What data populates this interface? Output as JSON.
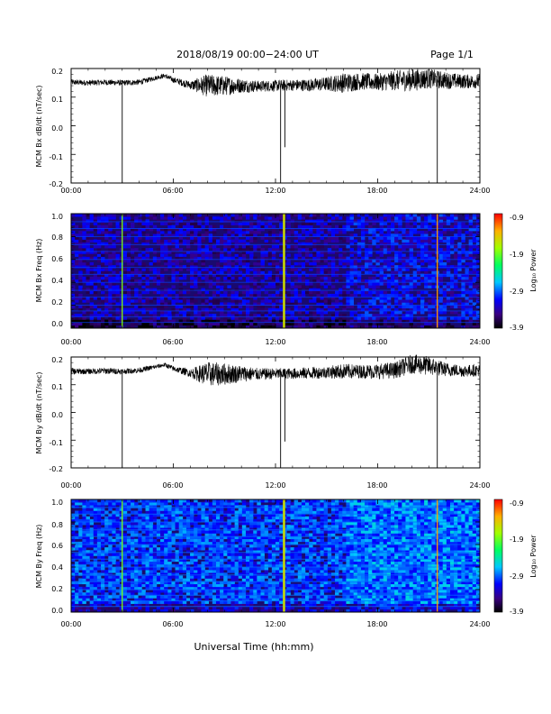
{
  "header": {
    "title": "2018/08/19  00:00−24:00 UT",
    "page": "Page 1/1"
  },
  "footer": {
    "xlabel": "Universal Time (hh:mm)"
  },
  "colors": {
    "trace": "#000000",
    "spectrogram_background": "#1a0a6e"
  },
  "chart_data": [
    {
      "type": "line",
      "panel": "bx-trace",
      "ylabel": "MCM Bx dB/dt (nT/sec)",
      "xlim": [
        0,
        24
      ],
      "ylim": [
        -0.2,
        0.2
      ],
      "x_ticks": [
        "00:00",
        "06:00",
        "12:00",
        "18:00",
        "24:00"
      ],
      "y_ticks": [
        "0.2",
        "0.1",
        "0.0",
        "-0.1",
        "-0.2"
      ],
      "series": [
        {
          "x": [
            0,
            1,
            2,
            3,
            4,
            5,
            5.5,
            6,
            7,
            8,
            9,
            10,
            11,
            12,
            13,
            14,
            15,
            16,
            17,
            18,
            19,
            20,
            21,
            22,
            23,
            24
          ],
          "y": [
            0.152,
            0.15,
            0.152,
            0.15,
            0.152,
            0.168,
            0.175,
            0.16,
            0.142,
            0.14,
            0.14,
            0.14,
            0.138,
            0.14,
            0.142,
            0.142,
            0.146,
            0.15,
            0.155,
            0.152,
            0.158,
            0.16,
            0.165,
            0.158,
            0.155,
            0.155
          ],
          "noise_amplitude": [
            0.01,
            0.01,
            0.01,
            0.01,
            0.01,
            0.008,
            0.008,
            0.01,
            0.015,
            0.04,
            0.035,
            0.025,
            0.02,
            0.02,
            0.02,
            0.022,
            0.025,
            0.035,
            0.03,
            0.03,
            0.035,
            0.04,
            0.035,
            0.03,
            0.025,
            0.025
          ],
          "spikes": [
            {
              "x": 3.0,
              "y": -0.2
            },
            {
              "x": 12.3,
              "y": -0.2
            },
            {
              "x": 12.55,
              "y": -0.075
            },
            {
              "x": 21.5,
              "y": -0.2
            }
          ]
        }
      ]
    },
    {
      "type": "heatmap",
      "panel": "bx-spectrogram",
      "ylabel": "MCM Bx Freq (Hz)",
      "xlim": [
        0,
        24
      ],
      "ylim": [
        0,
        1.0
      ],
      "x_ticks": [
        "00:00",
        "06:00",
        "12:00",
        "18:00",
        "24:00"
      ],
      "y_ticks": [
        "1.0",
        "0.8",
        "0.6",
        "0.4",
        "0.2",
        "0.0"
      ],
      "colorbar": {
        "label": "Log₁₀ Power",
        "range": [
          -3.9,
          -0.9
        ],
        "ticks": [
          "-0.9",
          "-1.9",
          "-2.9",
          "-3.9"
        ]
      },
      "harmonic_lines_hz": [
        0.05,
        0.1,
        0.15,
        0.2,
        0.27,
        0.33,
        0.4,
        0.47,
        0.53,
        0.6,
        0.67,
        0.73,
        0.8,
        0.87,
        0.93
      ],
      "vertical_events": [
        {
          "t": 3.0,
          "level": -1.9
        },
        {
          "t": 12.5,
          "level": -1.6
        },
        {
          "t": 21.5,
          "level": -1.3
        }
      ]
    },
    {
      "type": "line",
      "panel": "by-trace",
      "ylabel": "MCM By dB/dt (nT/sec)",
      "xlim": [
        0,
        24
      ],
      "ylim": [
        -0.2,
        0.2
      ],
      "x_ticks": [
        "00:00",
        "06:00",
        "12:00",
        "18:00",
        "24:00"
      ],
      "y_ticks": [
        "0.2",
        "0.1",
        "0.0",
        "-0.1",
        "-0.2"
      ],
      "series": [
        {
          "x": [
            0,
            1,
            2,
            3,
            4,
            5,
            5.5,
            6,
            7,
            8,
            9,
            10,
            11,
            12,
            13,
            14,
            15,
            16,
            17,
            18,
            19,
            20,
            21,
            22,
            23,
            24
          ],
          "y": [
            0.148,
            0.148,
            0.15,
            0.148,
            0.152,
            0.165,
            0.172,
            0.158,
            0.142,
            0.138,
            0.138,
            0.14,
            0.138,
            0.14,
            0.14,
            0.142,
            0.145,
            0.148,
            0.148,
            0.148,
            0.152,
            0.175,
            0.168,
            0.155,
            0.15,
            0.152
          ],
          "noise_amplitude": [
            0.012,
            0.01,
            0.012,
            0.01,
            0.01,
            0.008,
            0.008,
            0.01,
            0.015,
            0.045,
            0.04,
            0.03,
            0.022,
            0.02,
            0.02,
            0.022,
            0.022,
            0.028,
            0.025,
            0.028,
            0.03,
            0.035,
            0.035,
            0.025,
            0.022,
            0.022
          ],
          "spikes": [
            {
              "x": 3.0,
              "y": -0.2
            },
            {
              "x": 12.3,
              "y": -0.2
            },
            {
              "x": 12.55,
              "y": -0.105
            },
            {
              "x": 21.5,
              "y": -0.2
            }
          ]
        }
      ]
    },
    {
      "type": "heatmap",
      "panel": "by-spectrogram",
      "ylabel": "MCM By Freq (Hz)",
      "xlim": [
        0,
        24
      ],
      "ylim": [
        0,
        1.0
      ],
      "x_ticks": [
        "00:00",
        "06:00",
        "12:00",
        "18:00",
        "24:00"
      ],
      "y_ticks": [
        "1.0",
        "0.8",
        "0.6",
        "0.4",
        "0.2",
        "0.0"
      ],
      "colorbar": {
        "label": "Log₁₀ Power",
        "range": [
          -3.9,
          -0.9
        ],
        "ticks": [
          "-0.9",
          "-1.9",
          "-2.9",
          "-3.9"
        ]
      },
      "harmonic_lines_hz": [
        0.05,
        0.1,
        0.15,
        0.2,
        0.27,
        0.33,
        0.4,
        0.47,
        0.53,
        0.6,
        0.67,
        0.73,
        0.8,
        0.87,
        0.93
      ],
      "vertical_events": [
        {
          "t": 3.0,
          "level": -1.9
        },
        {
          "t": 12.5,
          "level": -1.6
        },
        {
          "t": 21.5,
          "level": -1.3
        }
      ]
    }
  ]
}
